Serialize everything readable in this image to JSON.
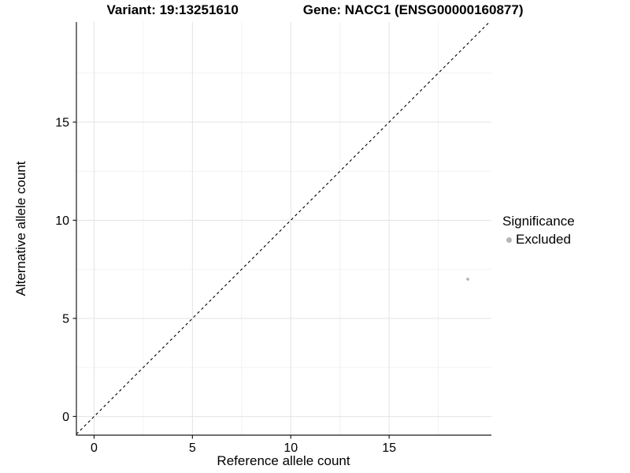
{
  "header": {
    "variant_title": "Variant: 19:13251610",
    "gene_title": "Gene: NACC1 (ENSG00000160877)"
  },
  "chart_data": {
    "type": "scatter",
    "title": "Variant: 19:13251610   Gene: NACC1 (ENSG00000160877)",
    "xlabel": "Reference allele count",
    "ylabel": "Alternative allele count",
    "xlim": [
      -0.9,
      20.2
    ],
    "ylim": [
      -0.95,
      20.1
    ],
    "x_ticks": [
      0,
      5,
      10,
      15
    ],
    "y_ticks": [
      0,
      5,
      10,
      15
    ],
    "x_minor_ticks": [
      2.5,
      7.5,
      12.5,
      17.5
    ],
    "y_minor_ticks": [
      2.5,
      7.5,
      12.5,
      17.5
    ],
    "grid": true,
    "series": [
      {
        "name": "Excluded",
        "color": "#b5b5b5",
        "points": [
          {
            "x": 19,
            "y": 7
          }
        ]
      }
    ],
    "reference_line": {
      "slope": 1,
      "intercept": 0,
      "style": "dashed",
      "color": "#000000"
    },
    "legend": {
      "title": "Significance",
      "position": "right",
      "items": [
        {
          "label": "Excluded",
          "color": "#b5b5b5"
        }
      ]
    },
    "colors": {
      "grid_major": "#e3e3e3",
      "grid_minor": "#f2f2f2",
      "axis": "#1a1a1a",
      "text": "#000000",
      "background": "#ffffff"
    }
  }
}
